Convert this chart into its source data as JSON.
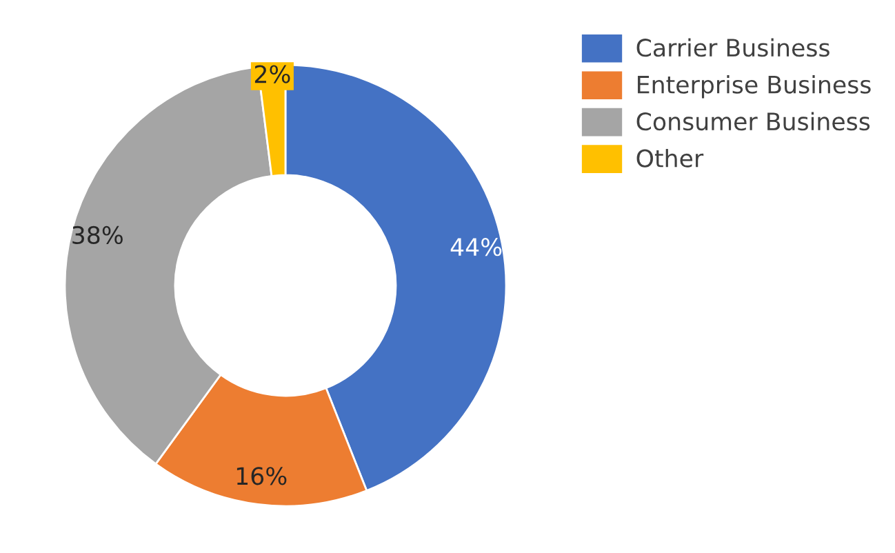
{
  "chart_data": {
    "type": "donut",
    "categories": [
      "Carrier Business",
      "Enterprise Business",
      "Consumer Business",
      "Other"
    ],
    "values": [
      44,
      16,
      38,
      2
    ],
    "value_labels": [
      "44%",
      "16%",
      "38%",
      "2%"
    ],
    "colors": [
      "#4472c4",
      "#ed7d31",
      "#a5a5a5",
      "#ffc000"
    ],
    "legend": "top right"
  }
}
